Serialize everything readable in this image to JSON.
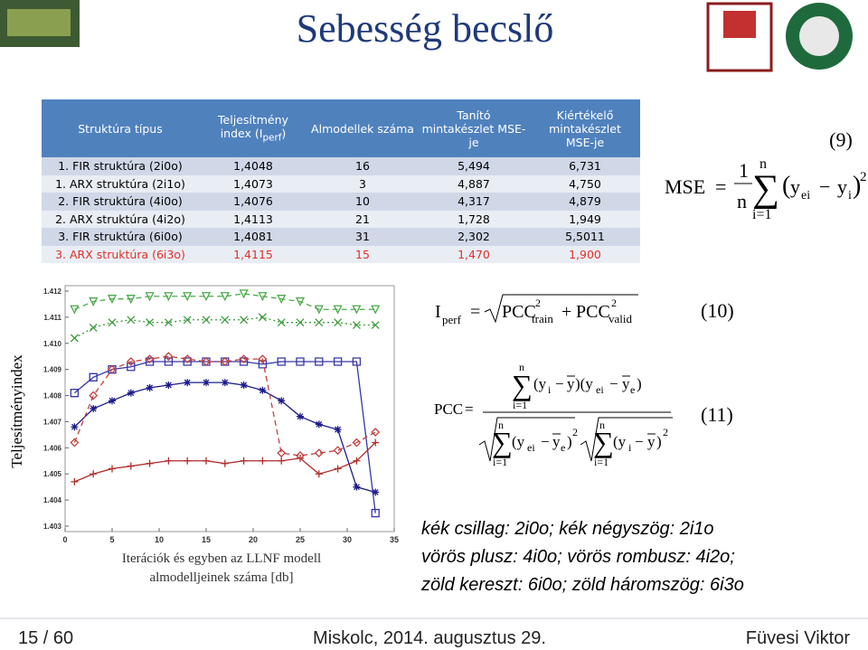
{
  "header": {
    "title": "Sebesség becslő"
  },
  "table": {
    "header": [
      "Struktúra típus",
      {
        "text": "Teljesítmény index (I",
        "sub": "perf",
        "after": ")"
      },
      "Almodellek száma",
      "Tanító mintakészlet MSE-je",
      "Kiértékelő mintakészlet MSE-je"
    ],
    "rows": [
      {
        "cells": [
          "1. FIR struktúra (2i0o)",
          "1,4048",
          "16",
          "5,494",
          "6,731"
        ],
        "color": "#000000"
      },
      {
        "cells": [
          "1. ARX struktúra (2i1o)",
          "1,4073",
          "3",
          "4,887",
          "4,750"
        ],
        "color": "#000000"
      },
      {
        "cells": [
          "2. FIR struktúra (4i0o)",
          "1,4076",
          "10",
          "4,317",
          "4,879"
        ],
        "color": "#000000"
      },
      {
        "cells": [
          "2. ARX struktúra (4i2o)",
          "1,4113",
          "21",
          "1,728",
          "1,949"
        ],
        "color": "#000000"
      },
      {
        "cells": [
          "3. FIR struktúra (6i0o)",
          "1,4081",
          "31",
          "2,302",
          "5,5011"
        ],
        "color": "#000000"
      },
      {
        "cells": [
          "3. ARX struktúra (6i3o)",
          "1,4115",
          "15",
          "1,470",
          "1,900"
        ],
        "color": "#e0302a"
      }
    ]
  },
  "formulas": {
    "mse": {
      "number": "(9)",
      "lhs": "MSE",
      "eq": "=",
      "frac_num": "1",
      "frac_den": "n",
      "sum": "∑",
      "sum_top": "n",
      "sum_bottom": "i=1",
      "open": "(",
      "y1": "y",
      "sub1": "ei",
      "minus": "−",
      "y2": "y",
      "sub2": "i",
      "close": ")",
      "power": "2"
    },
    "iperf": {
      "number": "(10)",
      "lhs": "I",
      "lhs_sub": "perf",
      "eq": "=",
      "term1": "PCC",
      "pow1": "2",
      "sub1": "train",
      "plus": "+",
      "term2": "PCC",
      "pow2": "2",
      "sub2": "valid"
    },
    "pcc": {
      "number": "(11)",
      "lhs": "PCC",
      "eq": "=",
      "numerator": [
        "n",
        "∑",
        "i=1",
        "(y",
        "i",
        "−",
        "y",
        ")(y",
        "ei",
        "−",
        "y",
        "e",
        ")"
      ],
      "den1": [
        "n",
        "∑",
        "i=1",
        "(y",
        "ei",
        "−",
        "y",
        "e",
        ")",
        "2"
      ],
      "den2": [
        "n",
        "∑",
        "i=1",
        "(y",
        "i",
        "−",
        "y",
        ")",
        "2"
      ]
    }
  },
  "chart_data": {
    "type": "line",
    "y_label": "Teljesítményindex",
    "x_label": [
      "Iterációk és egyben az LLNF modell",
      "almodelljeinek száma [db]"
    ],
    "x": [
      1,
      3,
      5,
      7,
      9,
      11,
      13,
      15,
      17,
      19,
      21,
      23,
      25,
      27,
      29,
      31,
      33
    ],
    "xlim": [
      0,
      35
    ],
    "ylim": [
      1.403,
      1.412
    ],
    "xticks": [
      0,
      5,
      10,
      15,
      20,
      25,
      30,
      35
    ],
    "yticks": [
      1.403,
      1.404,
      1.405,
      1.406,
      1.407,
      1.408,
      1.409,
      {
        "value": 1.41,
        "label": "1.410"
      },
      1.411,
      1.412
    ],
    "series": [
      {
        "color": "#1c1c8c",
        "marker": "star",
        "dash": "solid",
        "values": [
          1.4068,
          1.4075,
          1.4078,
          1.4081,
          1.4083,
          1.4084,
          1.4085,
          1.4085,
          1.4085,
          1.4084,
          1.4082,
          1.4078,
          1.4072,
          1.4069,
          1.4067,
          1.4045,
          1.4043
        ]
      },
      {
        "color": "#3636a8",
        "marker": "square",
        "dash": "solid",
        "values": [
          1.4081,
          1.4087,
          1.409,
          1.4091,
          1.4093,
          1.4093,
          1.4093,
          1.4093,
          1.4093,
          1.4093,
          1.4092,
          1.4093,
          1.4093,
          1.4093,
          1.4093,
          1.4093,
          1.4035
        ]
      },
      {
        "color": "#b02c2c",
        "marker": "plus",
        "dash": "solid",
        "values": [
          1.4047,
          1.405,
          1.4052,
          1.4053,
          1.4054,
          1.4055,
          1.4055,
          1.4055,
          1.4054,
          1.4055,
          1.4055,
          1.4055,
          1.4056,
          1.405,
          1.4052,
          1.4055,
          1.4062
        ]
      },
      {
        "color": "#c04040",
        "marker": "diamond",
        "dash": "dashed",
        "values": [
          1.4062,
          1.408,
          1.409,
          1.4093,
          1.4094,
          1.4095,
          1.4094,
          1.4093,
          1.4093,
          1.4094,
          1.4094,
          1.4058,
          1.4057,
          1.4058,
          1.4059,
          1.4062,
          1.4066
        ]
      },
      {
        "color": "#3c9c3c",
        "marker": "cross",
        "dash": "dotted",
        "values": [
          1.4102,
          1.4106,
          1.4108,
          1.4109,
          1.4108,
          1.4108,
          1.4109,
          1.4109,
          1.4109,
          1.4109,
          1.411,
          1.4108,
          1.4108,
          1.4108,
          1.4108,
          1.4107,
          1.4107
        ]
      },
      {
        "color": "#4caa4c",
        "marker": "triangle",
        "dash": "dashed",
        "values": [
          1.4113,
          1.4116,
          1.4117,
          1.4117,
          1.4118,
          1.4118,
          1.4118,
          1.4118,
          1.4118,
          1.4119,
          1.4118,
          1.4117,
          1.4116,
          1.4113,
          1.4113,
          1.4113,
          1.4113
        ]
      }
    ]
  },
  "legend_text": [
    "kék csillag: 2i0o; kék négyszög: 2i1o",
    "vörös plusz: 4i0o; vörös rombusz: 4i2o;",
    "zöld kereszt: 6i0o; zöld háromszög: 6i3o"
  ],
  "footer": {
    "page": "15 / 60",
    "place_date": "Miskolc, 2014. augusztus 29.",
    "author": "Füvesi Viktor"
  }
}
